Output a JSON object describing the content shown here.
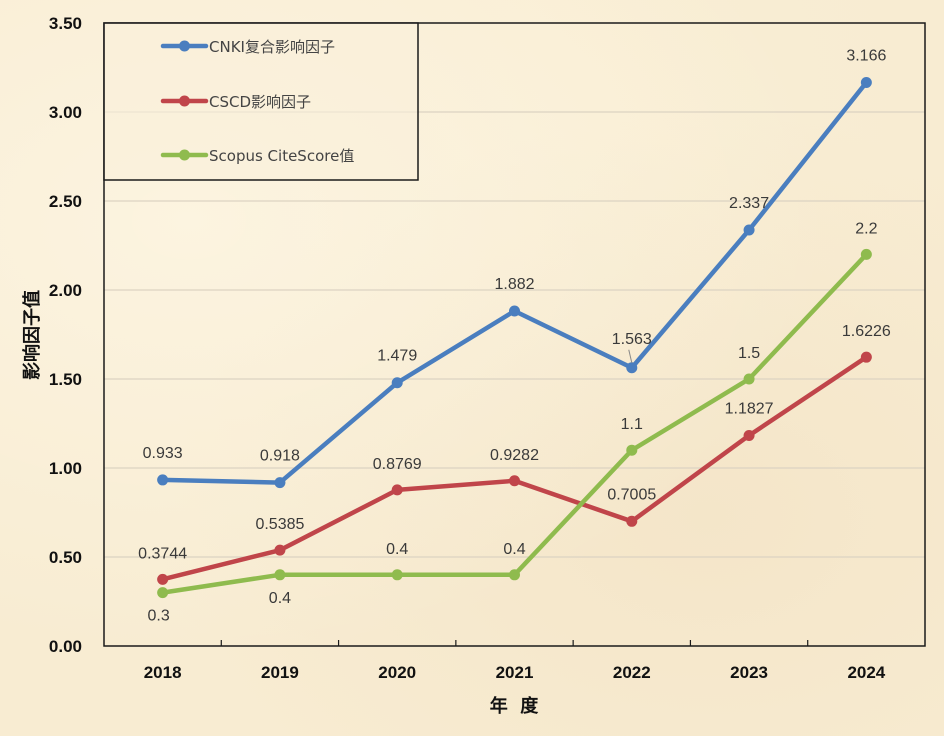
{
  "chart_data": {
    "type": "line",
    "title": "",
    "xlabel": "年  度",
    "ylabel": "影响因子值",
    "categories": [
      "2018",
      "2019",
      "2020",
      "2021",
      "2022",
      "2023",
      "2024"
    ],
    "ylim": [
      0,
      3.5
    ],
    "yticks": [
      "0.00",
      "0.50",
      "1.00",
      "1.50",
      "2.00",
      "2.50",
      "3.00",
      "3.50"
    ],
    "ytick_values": [
      0,
      0.5,
      1.0,
      1.5,
      2.0,
      2.5,
      3.0,
      3.5
    ],
    "grid": true,
    "legend_position": "top-left",
    "series": [
      {
        "name": "CNKI复合影响因子",
        "color": "#4a7ebf",
        "values": [
          0.933,
          0.918,
          1.479,
          1.882,
          1.563,
          2.337,
          3.166
        ],
        "labels": [
          "0.933",
          "0.918",
          "1.479",
          "1.882",
          "1.563",
          "2.337",
          "3.166"
        ]
      },
      {
        "name": "CSCD影响因子",
        "color": "#c0454a",
        "values": [
          0.3744,
          0.5385,
          0.8769,
          0.9282,
          0.7005,
          1.1827,
          1.6226
        ],
        "labels": [
          "0.3744",
          "0.5385",
          "0.8769",
          "0.9282",
          "0.7005",
          "1.1827",
          "1.6226"
        ]
      },
      {
        "name": "Scopus CiteScore值",
        "color": "#8fbb4e",
        "values": [
          0.3,
          0.4,
          0.4,
          0.4,
          1.1,
          1.5,
          2.2
        ],
        "labels": [
          "0.3",
          "0.4",
          "0.4",
          "0.4",
          "1.1",
          "1.5",
          "2.2"
        ]
      }
    ]
  }
}
